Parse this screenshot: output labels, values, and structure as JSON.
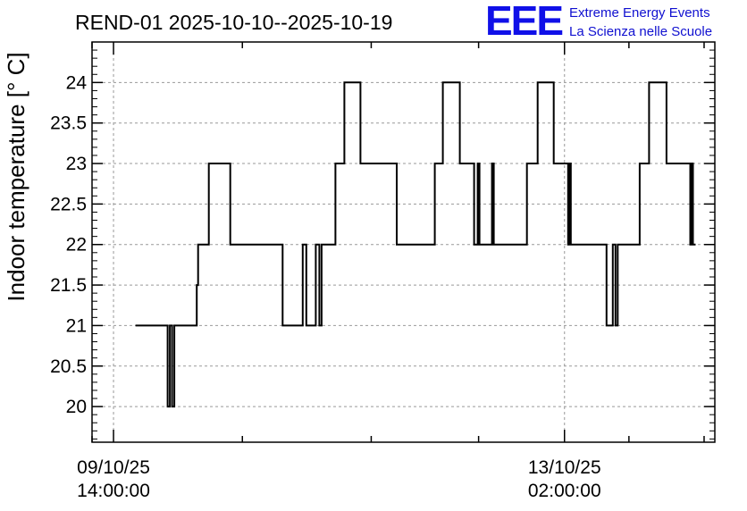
{
  "logo": {
    "mark": "EEE",
    "line1": "Extreme Energy Events",
    "line2": "La Scienza nelle Scuole",
    "color": "#1010e8"
  },
  "chart_data": {
    "type": "line",
    "step": true,
    "title": "REND-01 2025-10-10--2025-10-19",
    "ylabel": "Indoor temperature [° C]",
    "xlabel": "",
    "xlim": [
      "2025-10-09T10:00",
      "2025-10-14T06:00"
    ],
    "ylim": [
      19.56,
      24.5
    ],
    "yticks": [
      {
        "value": 20,
        "label": "20"
      },
      {
        "value": 20.5,
        "label": "20.5"
      },
      {
        "value": 21,
        "label": "21"
      },
      {
        "value": 21.5,
        "label": "21.5"
      },
      {
        "value": 22,
        "label": "22"
      },
      {
        "value": 22.5,
        "label": "22.5"
      },
      {
        "value": 23,
        "label": "23"
      },
      {
        "value": 23.5,
        "label": "23.5"
      },
      {
        "value": 24,
        "label": "24"
      }
    ],
    "xticks": [
      {
        "x": "2025-10-09T14:00",
        "date": "09/10/25",
        "time": "14:00:00"
      },
      {
        "x": "2025-10-13T02:00",
        "date": "13/10/25",
        "time": "02:00:00"
      }
    ],
    "xminor": [
      "2025-10-09T10:00",
      "2025-10-10T14:00",
      "2025-10-11T14:00",
      "2025-10-12T10:00",
      "2025-10-13T14:00",
      "2025-10-14T04:00"
    ],
    "grid": true,
    "series": [
      {
        "color": "#000000",
        "points": [
          [
            "2025-10-09T18:05",
            21
          ],
          [
            "2025-10-10T00:05",
            21
          ],
          [
            "2025-10-10T00:05",
            20
          ],
          [
            "2025-10-10T00:30",
            20
          ],
          [
            "2025-10-10T00:30",
            21
          ],
          [
            "2025-10-10T00:55",
            21
          ],
          [
            "2025-10-10T00:55",
            20
          ],
          [
            "2025-10-10T01:20",
            20
          ],
          [
            "2025-10-10T01:20",
            21
          ],
          [
            "2025-10-10T05:30",
            21
          ],
          [
            "2025-10-10T05:30",
            21.5
          ],
          [
            "2025-10-10T05:45",
            21.5
          ],
          [
            "2025-10-10T05:45",
            22
          ],
          [
            "2025-10-10T07:45",
            22
          ],
          [
            "2025-10-10T07:45",
            23
          ],
          [
            "2025-10-10T11:45",
            23
          ],
          [
            "2025-10-10T11:45",
            22
          ],
          [
            "2025-10-10T21:30",
            22
          ],
          [
            "2025-10-10T21:30",
            21
          ],
          [
            "2025-10-11T01:15",
            21
          ],
          [
            "2025-10-11T01:15",
            22
          ],
          [
            "2025-10-11T01:55",
            22
          ],
          [
            "2025-10-11T01:55",
            21
          ],
          [
            "2025-10-11T03:40",
            21
          ],
          [
            "2025-10-11T03:40",
            22
          ],
          [
            "2025-10-11T04:20",
            22
          ],
          [
            "2025-10-11T04:20",
            21
          ],
          [
            "2025-10-11T04:45",
            21
          ],
          [
            "2025-10-11T04:45",
            22
          ],
          [
            "2025-10-11T07:20",
            22
          ],
          [
            "2025-10-11T07:20",
            23
          ],
          [
            "2025-10-11T09:00",
            23
          ],
          [
            "2025-10-11T09:00",
            24
          ],
          [
            "2025-10-11T12:00",
            24
          ],
          [
            "2025-10-11T12:00",
            23
          ],
          [
            "2025-10-11T18:45",
            23
          ],
          [
            "2025-10-11T18:45",
            22
          ],
          [
            "2025-10-12T01:50",
            22
          ],
          [
            "2025-10-12T01:50",
            23
          ],
          [
            "2025-10-12T03:20",
            23
          ],
          [
            "2025-10-12T03:20",
            24
          ],
          [
            "2025-10-12T06:30",
            24
          ],
          [
            "2025-10-12T06:30",
            23
          ],
          [
            "2025-10-12T09:10",
            23
          ],
          [
            "2025-10-12T09:10",
            22
          ],
          [
            "2025-10-12T09:50",
            22
          ],
          [
            "2025-10-12T09:50",
            23
          ],
          [
            "2025-10-12T10:10",
            23
          ],
          [
            "2025-10-12T10:10",
            22
          ],
          [
            "2025-10-12T12:30",
            22
          ],
          [
            "2025-10-12T12:30",
            23
          ],
          [
            "2025-10-12T12:50",
            23
          ],
          [
            "2025-10-12T12:50",
            22
          ],
          [
            "2025-10-12T19:00",
            22
          ],
          [
            "2025-10-12T19:00",
            23
          ],
          [
            "2025-10-12T21:00",
            23
          ],
          [
            "2025-10-12T21:00",
            24
          ],
          [
            "2025-10-13T00:00",
            24
          ],
          [
            "2025-10-13T00:00",
            23
          ],
          [
            "2025-10-13T02:40",
            23
          ],
          [
            "2025-10-13T02:40",
            22
          ],
          [
            "2025-10-13T02:55",
            22
          ],
          [
            "2025-10-13T02:55",
            23
          ],
          [
            "2025-10-13T03:10",
            23
          ],
          [
            "2025-10-13T03:10",
            22
          ],
          [
            "2025-10-13T09:50",
            22
          ],
          [
            "2025-10-13T09:50",
            21
          ],
          [
            "2025-10-13T11:00",
            21
          ],
          [
            "2025-10-13T11:00",
            22
          ],
          [
            "2025-10-13T11:30",
            22
          ],
          [
            "2025-10-13T11:30",
            21
          ],
          [
            "2025-10-13T11:55",
            21
          ],
          [
            "2025-10-13T11:55",
            22
          ],
          [
            "2025-10-13T16:00",
            22
          ],
          [
            "2025-10-13T16:00",
            23
          ],
          [
            "2025-10-13T17:45",
            23
          ],
          [
            "2025-10-13T17:45",
            24
          ],
          [
            "2025-10-13T21:00",
            24
          ],
          [
            "2025-10-13T21:00",
            23
          ],
          [
            "2025-10-14T01:25",
            23
          ],
          [
            "2025-10-14T01:25",
            22
          ],
          [
            "2025-10-14T01:40",
            22
          ],
          [
            "2025-10-14T01:40",
            23
          ],
          [
            "2025-10-14T01:55",
            23
          ],
          [
            "2025-10-14T01:55",
            22
          ],
          [
            "2025-10-14T02:25",
            22
          ]
        ]
      }
    ]
  }
}
